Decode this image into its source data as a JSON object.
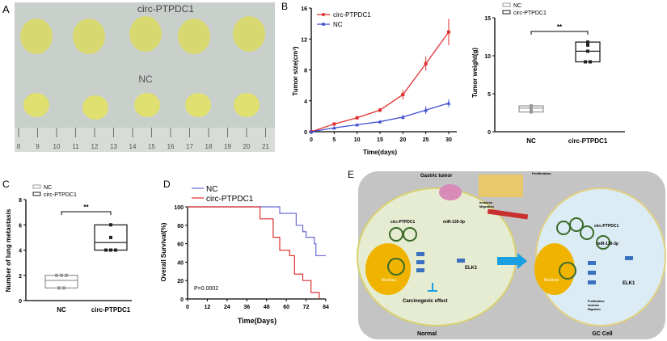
{
  "panel_labels": {
    "a": "A",
    "b": "B",
    "c": "C",
    "d": "D",
    "e": "E"
  },
  "photo": {
    "top_label": "circ-PTPDC1",
    "bottom_label": "NC",
    "ruler_ticks": [
      "8",
      "9",
      "10",
      "11",
      "12",
      "13",
      "14",
      "15",
      "16",
      "17",
      "18",
      "19",
      "20",
      "21"
    ]
  },
  "chart_data": [
    {
      "id": "tumor-size",
      "type": "line",
      "xlabel": "Time(days)",
      "ylabel": "Tumor size(cm³)",
      "xlim": [
        0,
        30
      ],
      "ylim": [
        0,
        16
      ],
      "xticks": [
        "0",
        "5",
        "10",
        "15",
        "20",
        "25",
        "30"
      ],
      "yticks": [
        "0",
        "4",
        "8",
        "12",
        "16"
      ],
      "legend": "top-left",
      "x": [
        0,
        5,
        10,
        15,
        20,
        25,
        30
      ],
      "series": [
        {
          "name": "circ-PTPDC1",
          "color": "#e03030",
          "values": [
            0,
            1.0,
            1.8,
            2.8,
            4.8,
            8.8,
            12.9
          ],
          "errors": [
            0,
            0.1,
            0.15,
            0.25,
            0.6,
            0.9,
            1.7
          ]
        },
        {
          "name": "NC",
          "color": "#4050d0",
          "values": [
            0,
            0.5,
            0.9,
            1.3,
            1.9,
            2.8,
            3.7
          ],
          "errors": [
            0,
            0.05,
            0.1,
            0.15,
            0.3,
            0.5,
            0.5
          ]
        }
      ]
    },
    {
      "id": "tumor-weight",
      "type": "box",
      "ylabel": "Tumor weight(g)",
      "ylim": [
        0,
        15
      ],
      "yticks": [
        "0",
        "5",
        "10",
        "15"
      ],
      "categories": [
        "NC",
        "circ-PTPDC1"
      ],
      "legend": "top-left",
      "significance": "**",
      "series": [
        {
          "name": "NC",
          "color": "#999999",
          "box": [
            2.6,
            3.1,
            3.4
          ],
          "points": [
            2.6,
            2.7,
            3.1,
            3.2,
            3.4
          ]
        },
        {
          "name": "circ-PTPDC1",
          "color": "#222222",
          "box": [
            9.2,
            10.6,
            11.8
          ],
          "points": [
            9.2,
            9.2,
            10.6,
            11.4,
            11.8
          ]
        }
      ]
    },
    {
      "id": "lung-metastasis",
      "type": "box",
      "ylabel": "Number of lung metastasis",
      "ylim": [
        0,
        8
      ],
      "yticks": [
        "0",
        "2",
        "4",
        "6",
        "8"
      ],
      "categories": [
        "NC",
        "circ-PTPDC1"
      ],
      "legend": "top-left",
      "significance": "**",
      "series": [
        {
          "name": "NC",
          "color": "#999999",
          "box": [
            1,
            1.6,
            2
          ],
          "points": [
            1,
            1,
            2,
            2,
            2
          ]
        },
        {
          "name": "circ-PTPDC1",
          "color": "#222222",
          "box": [
            4,
            4.6,
            6
          ],
          "points": [
            4,
            4,
            4,
            5,
            6
          ]
        }
      ]
    },
    {
      "id": "survival",
      "type": "line",
      "step": true,
      "xlabel": "Time(Days)",
      "ylabel": "Overall Survival(%)",
      "xlim": [
        0,
        84
      ],
      "ylim": [
        0,
        100
      ],
      "xticks": [
        "0",
        "12",
        "24",
        "36",
        "48",
        "60",
        "72",
        "84"
      ],
      "yticks": [
        "0",
        "20",
        "40",
        "60",
        "80",
        "100"
      ],
      "legend": "top-left",
      "annotation": "P=0.0002",
      "series": [
        {
          "name": "NC",
          "color": "#6a6ad8",
          "x": [
            0,
            56,
            66,
            70,
            72,
            77,
            78,
            84
          ],
          "values": [
            100,
            93,
            80,
            73,
            67,
            60,
            47,
            47
          ]
        },
        {
          "name": "circ-PTPDC1",
          "color": "#e03030",
          "x": [
            0,
            44,
            52,
            56,
            62,
            65,
            70,
            75,
            80
          ],
          "values": [
            100,
            87,
            67,
            53,
            47,
            27,
            20,
            7,
            0
          ]
        }
      ]
    }
  ],
  "diagram": {
    "gastric_tumor": "Gastric tumor",
    "proliferation": "Proliferation",
    "invasion": "Invasion",
    "migration": "Migration",
    "normal": {
      "title": "Normal",
      "circ": "circ-PTPDC1",
      "mir": "miR-139-3p",
      "elk": "ELK1",
      "nucleus": "Nucleus",
      "effect": "Carcinogenic effect"
    },
    "gc": {
      "title": "GC Cell",
      "circ": "circ-PTPDC1",
      "mir": "miR-139-3p",
      "elk": "ELK1",
      "nucleus": "Nucleus",
      "out1": "Proliferation",
      "out2": "Invasion",
      "out3": "Migration"
    }
  }
}
